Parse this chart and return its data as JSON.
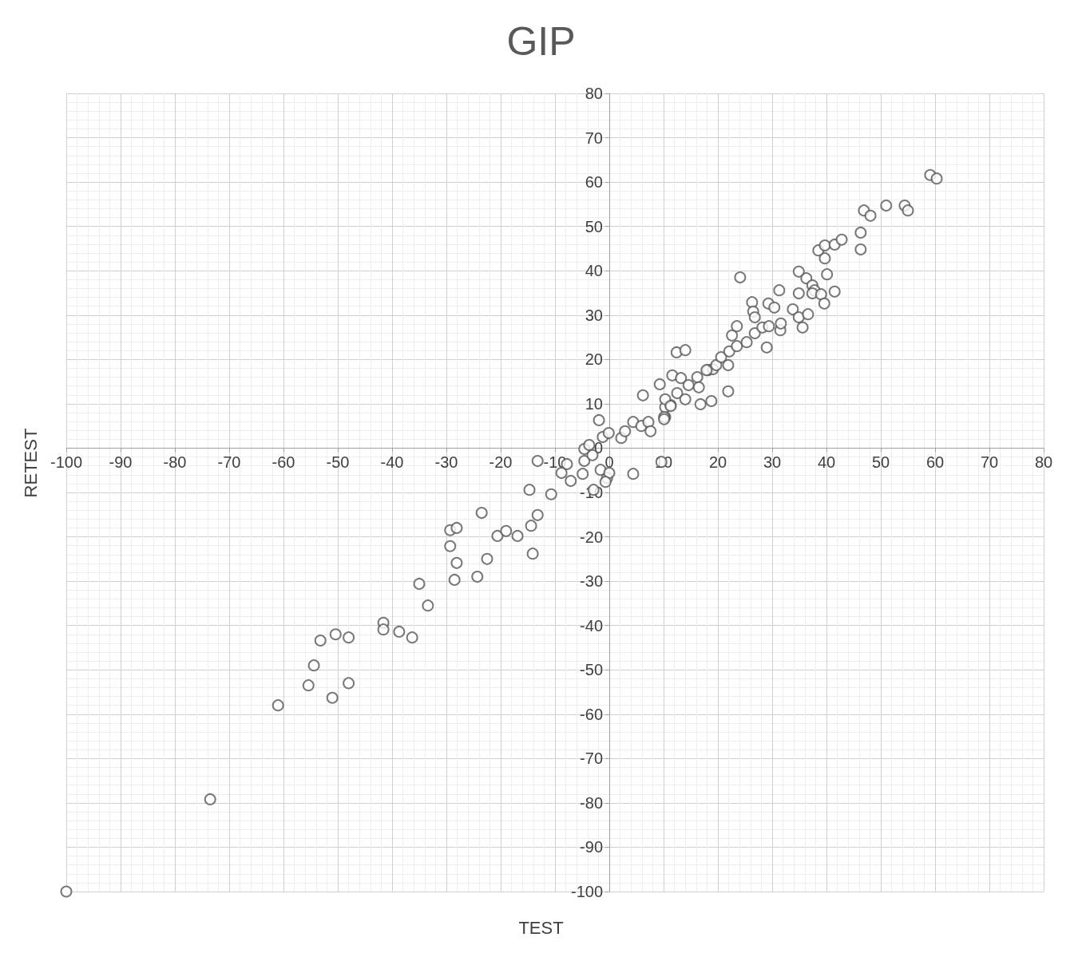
{
  "chart_data": {
    "type": "scatter",
    "title": "GIP",
    "xlabel": "TEST",
    "ylabel": "RETEST",
    "xlim": [
      -100,
      80
    ],
    "xticks": [
      -100,
      -90,
      -80,
      -70,
      -60,
      -50,
      -40,
      -30,
      -20,
      -10,
      0,
      10,
      20,
      30,
      40,
      50,
      60,
      70,
      80
    ],
    "ylim": [
      -100,
      80
    ],
    "yticks": [
      -100,
      -90,
      -80,
      -70,
      -60,
      -50,
      -40,
      -30,
      -20,
      -10,
      0,
      10,
      20,
      30,
      40,
      50,
      60,
      70,
      80
    ],
    "grid": true,
    "marker": "circle",
    "series": [
      {
        "color": "#595959",
        "x": [
          -100,
          -73.5,
          -61,
          -55.4,
          -54.4,
          -53.2,
          -51,
          -50.4,
          -48,
          -48,
          -41.6,
          -41.6,
          -38.7,
          -36.3,
          -35,
          -33.4,
          -29.3,
          -28.1,
          -29.3,
          -28.1,
          -28.5,
          -24.3,
          -23.5,
          -22.5,
          -20.6,
          -19,
          -16.9,
          -14.7,
          -14.4,
          -14.1,
          -13.2,
          -13.2,
          -10.7,
          -7.8,
          -8.8,
          -7.1,
          -4.9,
          -4.6,
          -2.9,
          -3.1,
          -4.6,
          -3.7,
          -1.6,
          -0.4,
          0,
          -0.7,
          4.4,
          9.6,
          -1.9,
          -1.2,
          -0.1,
          2.2,
          2.9,
          4.4,
          5.9,
          7.2,
          7.6,
          10.3,
          10.3,
          11.3,
          6.2,
          9.3,
          11.6,
          12.4,
          14,
          13.2,
          14.6,
          16.2,
          16.5,
          18.2,
          19.1,
          10.3,
          11.3,
          12.5,
          14,
          16.8,
          18.8,
          10.1,
          10.1,
          24.1,
          21.9,
          17.9,
          19.7,
          21.9,
          20.6,
          22.1,
          23.5,
          22.6,
          23.5,
          25.3,
          26.8,
          28.2,
          29.4,
          29,
          31.5,
          31.6,
          26.3,
          26.5,
          26.8,
          29.3,
          30.4,
          31.3,
          33.8,
          34.9,
          35.6,
          36.6,
          34.9,
          34.9,
          36.3,
          37.4,
          37.8,
          37.4,
          39,
          39.6,
          40.1,
          41.5,
          38.5,
          39.7,
          39.7,
          41.5,
          42.8,
          46.3,
          46.3,
          46.9,
          48.1,
          51,
          54.4,
          55,
          59.1,
          60.3
        ],
        "values": [
          -100,
          -79.2,
          -58,
          -53.5,
          -49,
          -43.4,
          -56.3,
          -42,
          -42.7,
          -53,
          -39.4,
          -40.9,
          -41.4,
          -42.7,
          -30.6,
          -35.5,
          -18.5,
          -18,
          -22.1,
          -25.9,
          -29.7,
          -29,
          -14.6,
          -25,
          -19.8,
          -18.7,
          -19.8,
          -9.4,
          -17.5,
          -23.8,
          -15.1,
          -2.9,
          -10.4,
          -3.6,
          -5.6,
          -7.4,
          -5.8,
          -2.9,
          -9.4,
          -1.6,
          -0.2,
          0.7,
          -4.9,
          -6.7,
          -5.6,
          -7.6,
          -5.8,
          -3.1,
          6.3,
          2.5,
          3.4,
          2.3,
          3.8,
          5.9,
          5,
          5.9,
          3.8,
          7,
          9.2,
          9.7,
          11.9,
          14.4,
          16.4,
          21.6,
          22.1,
          15.8,
          14.2,
          16,
          13.7,
          17.6,
          17.8,
          11,
          9.5,
          12.4,
          11,
          9.9,
          10.6,
          7,
          6.5,
          38.5,
          12.8,
          17.6,
          18.7,
          18.7,
          20.5,
          21.8,
          23,
          25.4,
          27.5,
          23.9,
          25.9,
          27.2,
          27.5,
          22.7,
          26.6,
          28.1,
          32.9,
          30.8,
          29.5,
          32.6,
          31.7,
          35.6,
          31.3,
          29.5,
          27.2,
          30.2,
          34.9,
          39.8,
          38.3,
          36.7,
          35.6,
          34.9,
          34.7,
          32.6,
          39.2,
          35.3,
          44.6,
          45.7,
          42.8,
          45.9,
          47,
          48.6,
          44.8,
          53.6,
          52.4,
          54.7,
          54.7,
          53.6,
          61.6,
          60.8
        ]
      }
    ]
  }
}
